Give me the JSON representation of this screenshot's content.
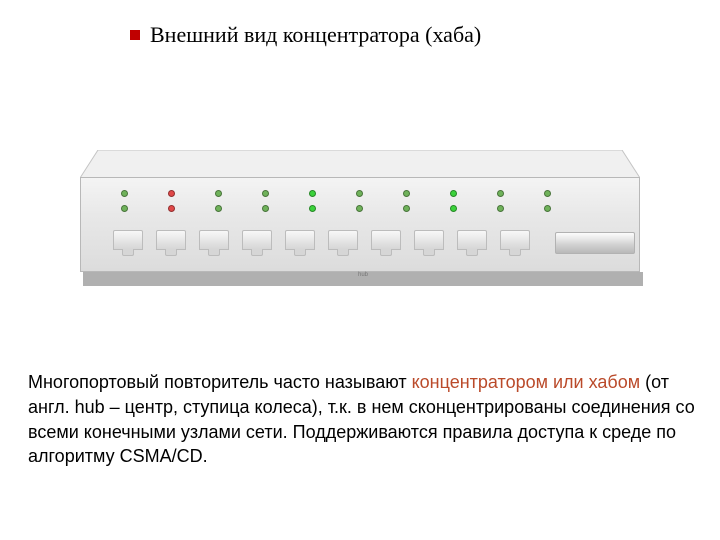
{
  "title": "Внешний вид концентратора (хаба)",
  "bullet_color": "#c00000",
  "hub": {
    "case_color_light": "#f4f4f4",
    "case_color_dark": "#dcdcdc",
    "shadow_color": "#b0b0b0",
    "border_color": "#b8b8b8",
    "top_fill": "#f0f0f0",
    "tiny_label": "hub",
    "led_colors_row1": [
      "#6fb25a",
      "#e04848",
      "#6fb25a",
      "#6fb25a",
      "#3bd23b",
      "#6fb25a",
      "#6fb25a",
      "#3bd23b",
      "#6fb25a",
      "#6fb25a"
    ],
    "led_colors_row2": [
      "#6fb25a",
      "#e04848",
      "#6fb25a",
      "#6fb25a",
      "#3bd23b",
      "#6fb25a",
      "#6fb25a",
      "#3bd23b",
      "#6fb25a",
      "#6fb25a"
    ],
    "num_ports": 10
  },
  "paragraph": {
    "pre": "Многопортовый повторитель часто называют ",
    "hl": "концентратором или хабом",
    "post": " (от англ. hub – центр, ступица колеса), т.к. в нем сконцентрированы соединения со всеми конечными узлами сети. Поддерживаются  правила доступа к среде по алгоритму CSMA/CD."
  },
  "colors": {
    "highlight": "#ba4a2a",
    "text": "#000000",
    "background": "#ffffff"
  }
}
